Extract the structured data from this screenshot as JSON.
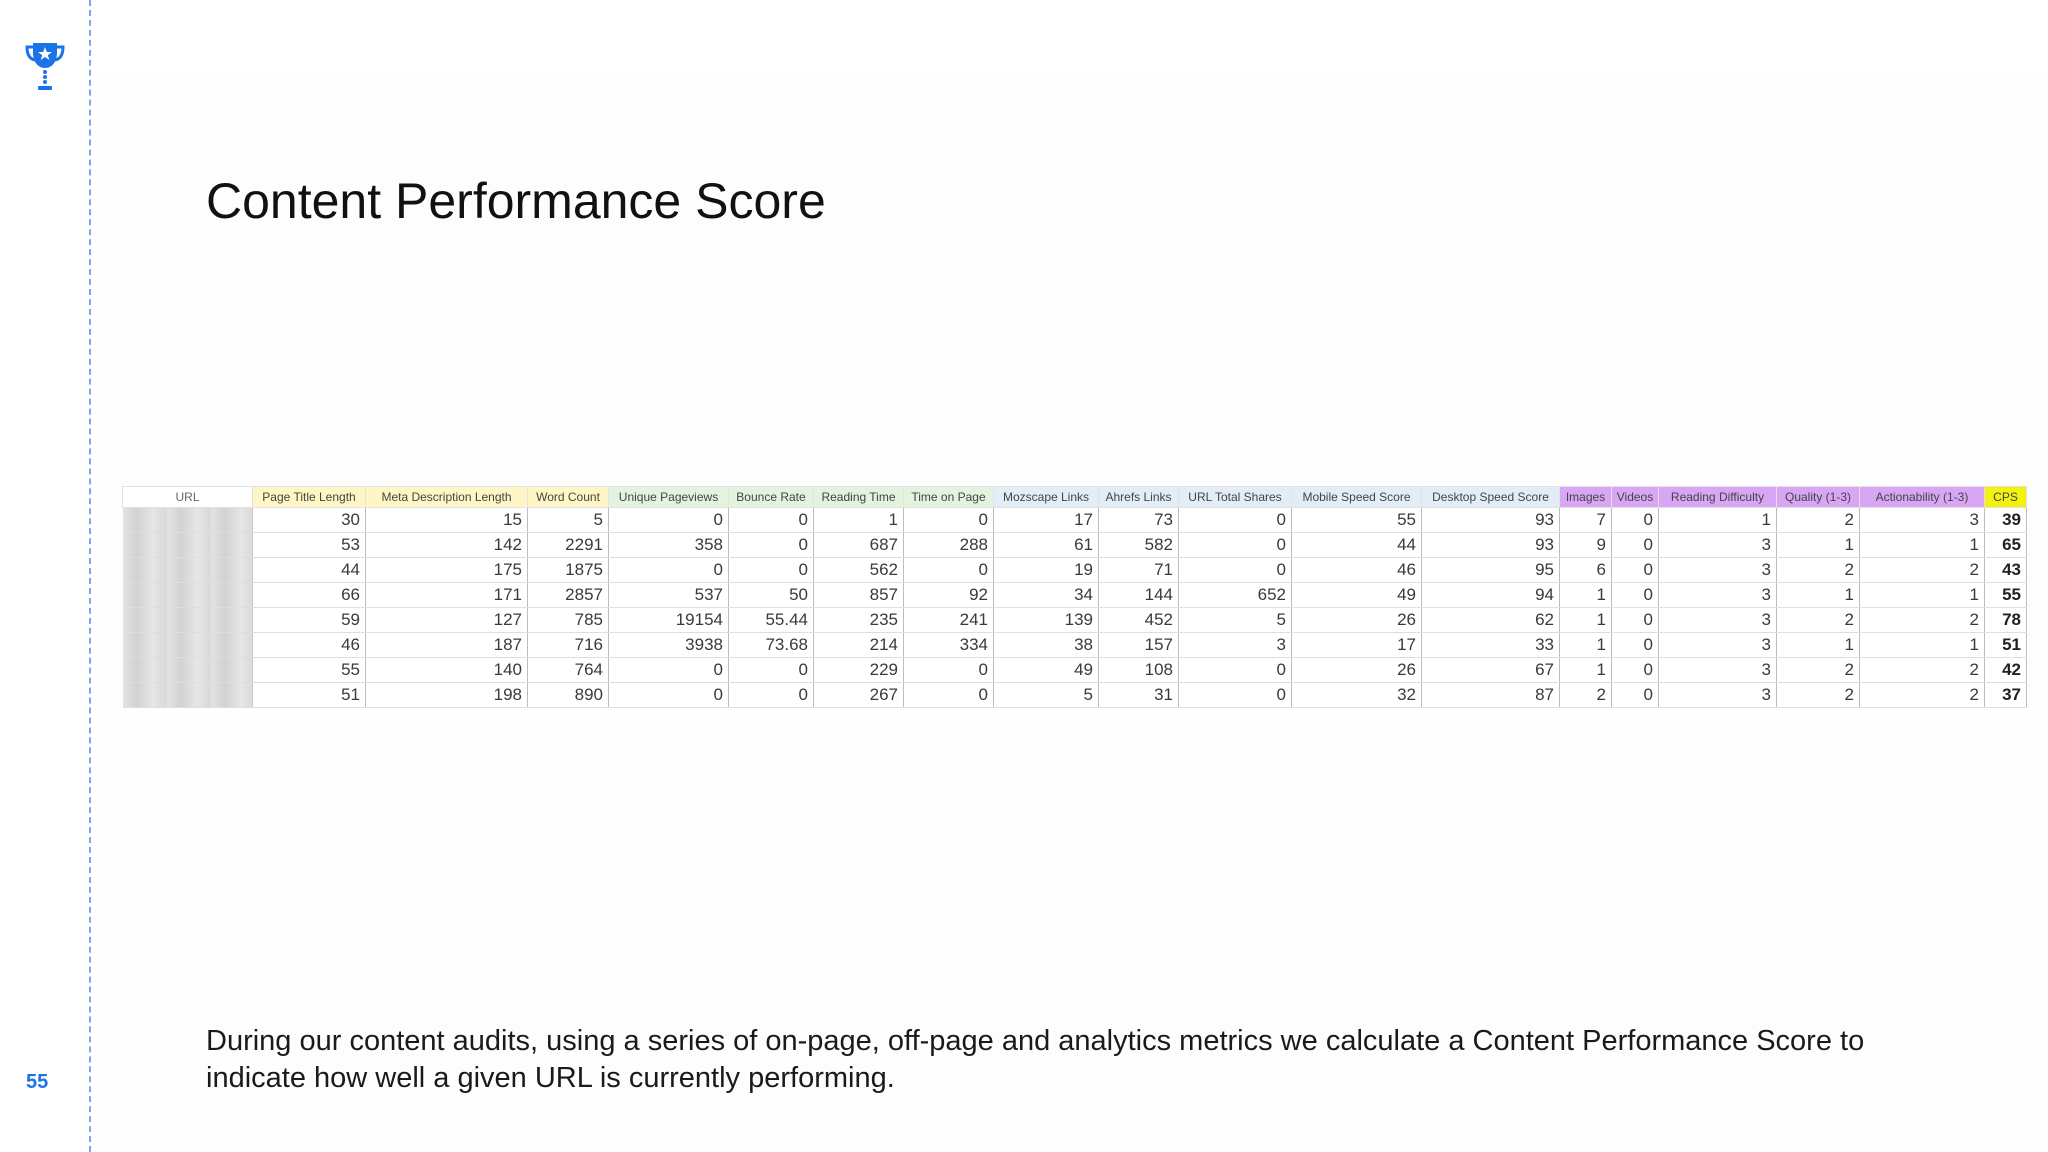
{
  "slide": {
    "number": "55",
    "title": "Content Performance Score",
    "description": "During our content audits, using a series of on-page, off-page and analytics metrics we calculate a Content Performance Score to indicate how well a given URL is currently performing."
  },
  "icons": {
    "logo": "trophy-icon"
  },
  "colors": {
    "accent": "#1a73e8",
    "header_yellow": "#fff6c6",
    "header_green": "#e3f4de",
    "header_blue": "#e3edf8",
    "header_purple": "#d9a6f5",
    "header_cps": "#f2f20e"
  },
  "table": {
    "headers": [
      "URL",
      "Page Title Length",
      "Meta Description Length",
      "Word Count",
      "Unique Pageviews",
      "Bounce Rate",
      "Reading Time",
      "Time on Page",
      "Mozscape Links",
      "Ahrefs Links",
      "URL Total Shares",
      "Mobile Speed Score",
      "Desktop Speed Score",
      "Images",
      "Videos",
      "Reading Difficulty",
      "Quality (1-3)",
      "Actionability (1-3)",
      "CPS"
    ],
    "rows": [
      [
        "",
        "30",
        "15",
        "5",
        "0",
        "0",
        "1",
        "0",
        "17",
        "73",
        "0",
        "55",
        "93",
        "7",
        "0",
        "1",
        "2",
        "3",
        "39"
      ],
      [
        "",
        "53",
        "142",
        "2291",
        "358",
        "0",
        "687",
        "288",
        "61",
        "582",
        "0",
        "44",
        "93",
        "9",
        "0",
        "3",
        "1",
        "1",
        "65"
      ],
      [
        "",
        "44",
        "175",
        "1875",
        "0",
        "0",
        "562",
        "0",
        "19",
        "71",
        "0",
        "46",
        "95",
        "6",
        "0",
        "3",
        "2",
        "2",
        "43"
      ],
      [
        "",
        "66",
        "171",
        "2857",
        "537",
        "50",
        "857",
        "92",
        "34",
        "144",
        "652",
        "49",
        "94",
        "1",
        "0",
        "3",
        "1",
        "1",
        "55"
      ],
      [
        "",
        "59",
        "127",
        "785",
        "19154",
        "55.44",
        "235",
        "241",
        "139",
        "452",
        "5",
        "26",
        "62",
        "1",
        "0",
        "3",
        "2",
        "2",
        "78"
      ],
      [
        "",
        "46",
        "187",
        "716",
        "3938",
        "73.68",
        "214",
        "334",
        "38",
        "157",
        "3",
        "17",
        "33",
        "1",
        "0",
        "3",
        "1",
        "1",
        "51"
      ],
      [
        "",
        "55",
        "140",
        "764",
        "0",
        "0",
        "229",
        "0",
        "49",
        "108",
        "0",
        "26",
        "67",
        "1",
        "0",
        "3",
        "2",
        "2",
        "42"
      ],
      [
        "",
        "51",
        "198",
        "890",
        "0",
        "0",
        "267",
        "0",
        "5",
        "31",
        "0",
        "32",
        "87",
        "2",
        "0",
        "3",
        "2",
        "2",
        "37"
      ]
    ]
  }
}
